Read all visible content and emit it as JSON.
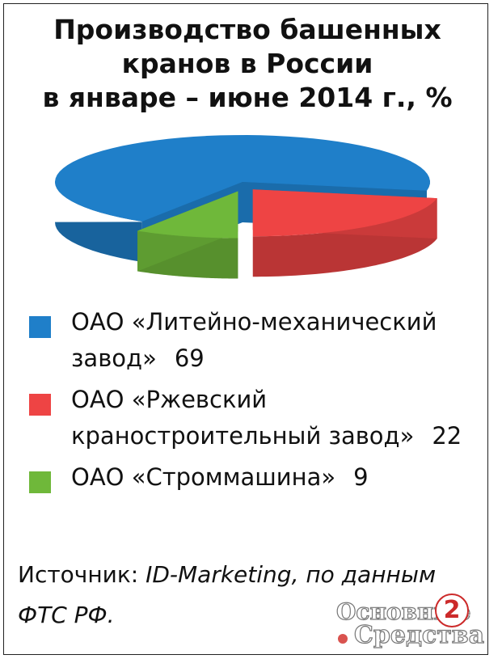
{
  "title_lines": [
    "Производство башенных",
    "кранов в России",
    "в январе – июне 2014 г., %"
  ],
  "chart_data": {
    "type": "pie",
    "title": "Производство башенных кранов в России в январе – июне 2014 г., %",
    "categories": [
      "ОАО «Литейно-механический завод»",
      "ОАО «Ржевский краностроительный завод»",
      "ОАО «Строммашина»"
    ],
    "values": [
      69,
      22,
      9
    ],
    "colors": [
      "#1f7fc9",
      "#ee4444",
      "#6fb83a"
    ],
    "legend_position": "bottom"
  },
  "legend": [
    {
      "label_lines": [
        "ОАО «Литейно-механический",
        "завод»"
      ],
      "value": "69"
    },
    {
      "label_lines": [
        "ОАО «Ржевский",
        "краностроительный завод»"
      ],
      "value": "22"
    },
    {
      "label_lines": [
        "ОАО «Строммашина»"
      ],
      "value": "9"
    }
  ],
  "source": {
    "prefix": "Источник:",
    "text": "ID-Marketing, по данным",
    "line2": "ФТС РФ."
  },
  "logo": {
    "line1": "Основные",
    "line2": "Средства",
    "badge": "2"
  }
}
